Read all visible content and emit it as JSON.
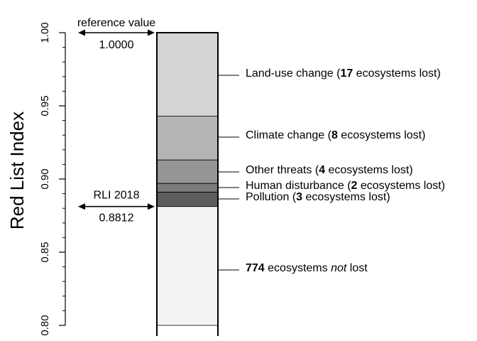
{
  "chart_data": {
    "type": "bar",
    "ylabel": "Red List Index",
    "ylim": [
      0.8,
      1.0
    ],
    "yticks": [
      {
        "value": 0.8,
        "label": "0.80"
      },
      {
        "value": 0.85,
        "label": "0.85"
      },
      {
        "value": 0.9,
        "label": "0.90"
      },
      {
        "value": 0.95,
        "label": "0.95"
      },
      {
        "value": 1.0,
        "label": "1.00"
      }
    ],
    "minor_tick_step": 0.01,
    "segments": [
      {
        "name": "land-use",
        "lo": 0.943,
        "hi": 1.0,
        "color": "#d4d4d4",
        "label": [
          {
            "t": "Land-use change ("
          },
          {
            "t": "17",
            "b": true
          },
          {
            "t": " ecosystems lost)"
          }
        ]
      },
      {
        "name": "climate",
        "lo": 0.913,
        "hi": 0.943,
        "color": "#b5b5b5",
        "label": [
          {
            "t": "Climate change ("
          },
          {
            "t": "8",
            "b": true
          },
          {
            "t": " ecosystems lost)"
          }
        ]
      },
      {
        "name": "other",
        "lo": 0.897,
        "hi": 0.913,
        "color": "#969696",
        "label": [
          {
            "t": "Other threats ("
          },
          {
            "t": "4",
            "b": true
          },
          {
            "t": " ecosystems lost)"
          }
        ]
      },
      {
        "name": "human",
        "lo": 0.891,
        "hi": 0.897,
        "color": "#7a7a7a",
        "label": [
          {
            "t": "Human disturbance ("
          },
          {
            "t": "2",
            "b": true
          },
          {
            "t": " ecosystems lost)"
          }
        ]
      },
      {
        "name": "pollution",
        "lo": 0.8812,
        "hi": 0.891,
        "color": "#5d5d5d",
        "label": [
          {
            "t": "Pollution ("
          },
          {
            "t": "3",
            "b": true
          },
          {
            "t": " ecosystems lost)"
          }
        ]
      },
      {
        "name": "not-lost",
        "lo": 0.8,
        "hi": 0.8812,
        "color": "#f3f3f3",
        "label": [
          {
            "t": "774",
            "b": true
          },
          {
            "t": " ecosystems "
          },
          {
            "t": "not",
            "i": true
          },
          {
            "t": " lost"
          }
        ]
      }
    ],
    "annotations": {
      "reference": {
        "title": "reference value",
        "value": 1.0,
        "value_label": "1.0000"
      },
      "rli": {
        "title": "RLI 2018",
        "value": 0.8812,
        "value_label": "0.8812"
      }
    }
  }
}
